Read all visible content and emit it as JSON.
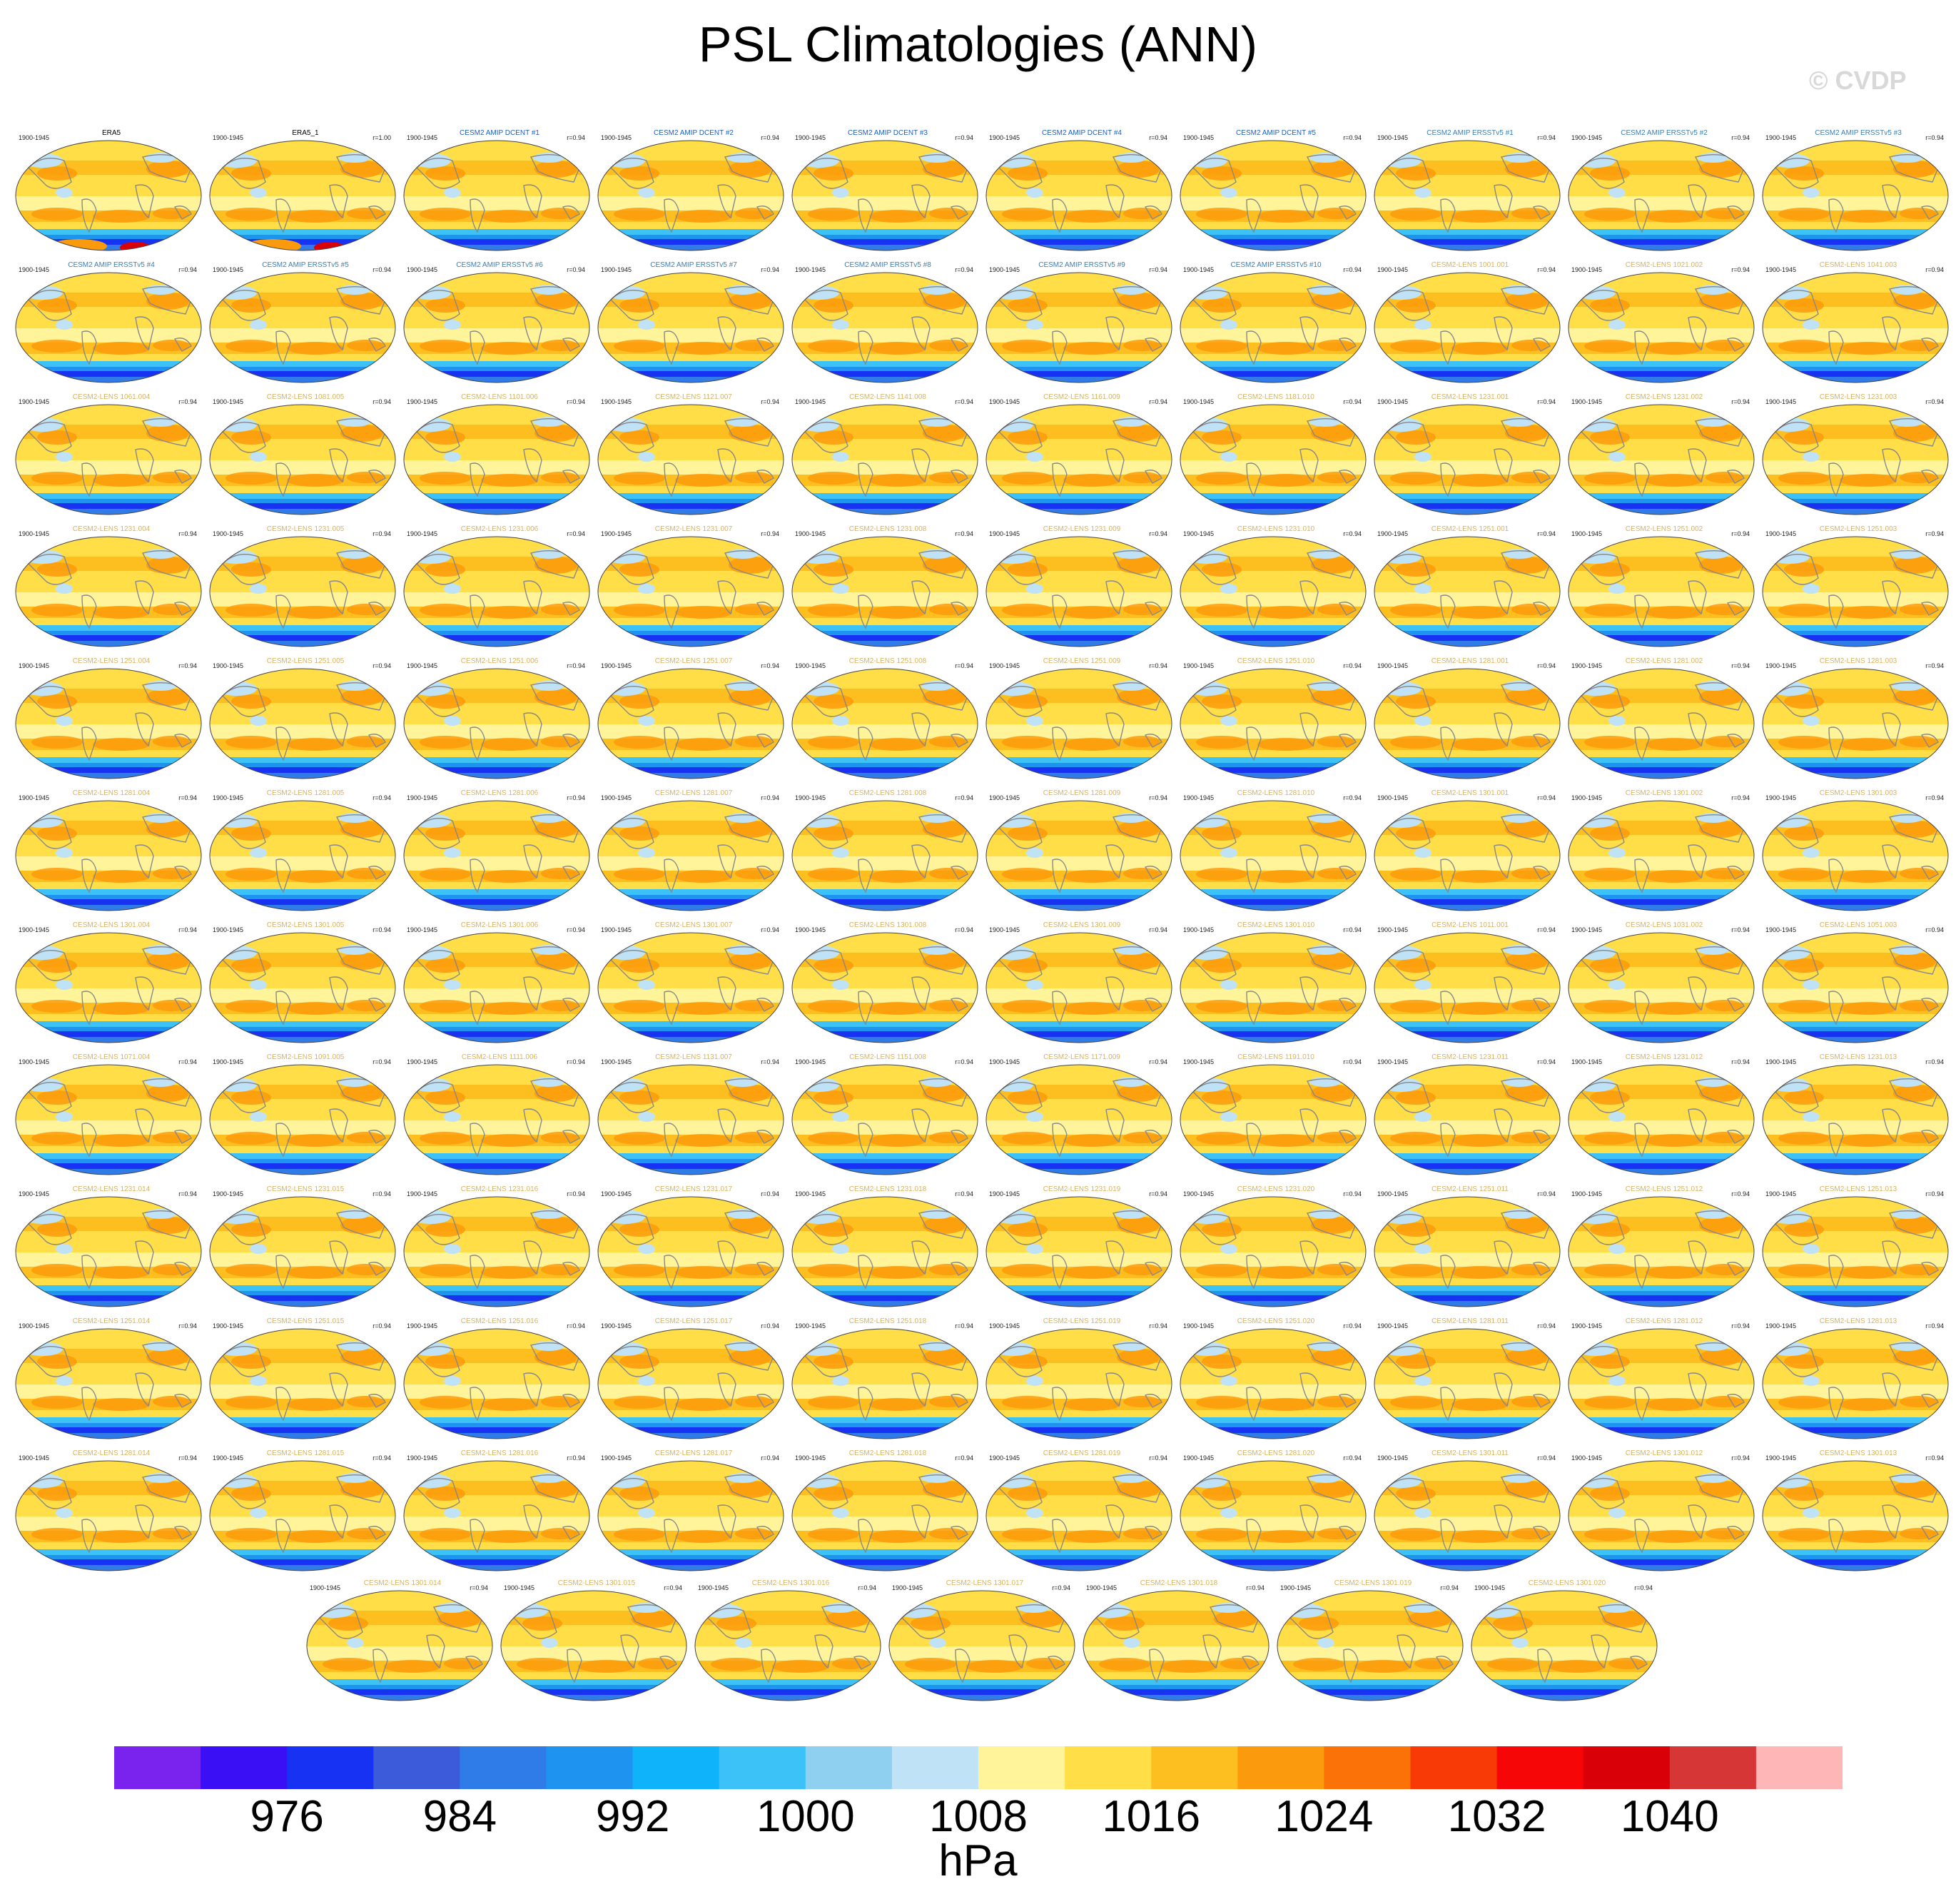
{
  "title": "PSL Climatologies (ANN)",
  "watermark": "© CVDP",
  "colors": {
    "ocean_fill": "#ffd54a",
    "coast": "#888888",
    "title_obs": "#000000",
    "title_amip": "#1f5fbf",
    "title_ersst": "#3a7fb5",
    "title_lens": "#d9b35c"
  },
  "chart_data": {
    "type": "heatmap",
    "projection": "Robinson",
    "variable": "PSL",
    "season": "ANN",
    "colorbar": {
      "units": "hPa",
      "levels": [
        972,
        976,
        980,
        984,
        988,
        992,
        996,
        1000,
        1004,
        1008,
        1012,
        1016,
        1020,
        1024,
        1028,
        1032,
        1036,
        1040
      ],
      "tick_labels": [
        "976",
        "984",
        "992",
        "1000",
        "1008",
        "1016",
        "1024",
        "1032",
        "1040"
      ],
      "colors": [
        "#7a22ee",
        "#3a0ff5",
        "#1732f2",
        "#3b5bdb",
        "#2f7be8",
        "#1f93f0",
        "#0eb3fa",
        "#3cc2f7",
        "#8fcff0",
        "#bfe2f7",
        "#fff49a",
        "#ffde47",
        "#fdbf1f",
        "#fb9a0c",
        "#fb7308",
        "#f83a07",
        "#f70608",
        "#d90008",
        "#d63636",
        "#ffb6b6"
      ]
    },
    "panels": [
      {
        "title": "ERA5",
        "period": "1900-1945",
        "r": "",
        "kind": "obs"
      },
      {
        "title": "ERA5_1",
        "period": "1900-1945",
        "r": "r=1.00",
        "kind": "obs"
      },
      {
        "title": "CESM2 AMIP DCENT #1",
        "period": "1900-1945",
        "r": "r=0.94",
        "kind": "amip"
      },
      {
        "title": "CESM2 AMIP DCENT #2",
        "period": "1900-1945",
        "r": "r=0.94",
        "kind": "amip"
      },
      {
        "title": "CESM2 AMIP DCENT #3",
        "period": "1900-1945",
        "r": "r=0.94",
        "kind": "amip"
      },
      {
        "title": "CESM2 AMIP DCENT #4",
        "period": "1900-1945",
        "r": "r=0.94",
        "kind": "amip"
      },
      {
        "title": "CESM2 AMIP DCENT #5",
        "period": "1900-1945",
        "r": "r=0.94",
        "kind": "amip"
      },
      {
        "title": "CESM2 AMIP ERSSTv5 #1",
        "period": "1900-1945",
        "r": "r=0.94",
        "kind": "ersst"
      },
      {
        "title": "CESM2 AMIP ERSSTv5 #2",
        "period": "1900-1945",
        "r": "r=0.94",
        "kind": "ersst"
      },
      {
        "title": "CESM2 AMIP ERSSTv5 #3",
        "period": "1900-1945",
        "r": "r=0.94",
        "kind": "ersst"
      },
      {
        "title": "CESM2 AMIP ERSSTv5 #4",
        "period": "1900-1945",
        "r": "r=0.94",
        "kind": "ersst"
      },
      {
        "title": "CESM2 AMIP ERSSTv5 #5",
        "period": "1900-1945",
        "r": "r=0.94",
        "kind": "ersst"
      },
      {
        "title": "CESM2 AMIP ERSSTv5 #6",
        "period": "1900-1945",
        "r": "r=0.94",
        "kind": "ersst"
      },
      {
        "title": "CESM2 AMIP ERSSTv5 #7",
        "period": "1900-1945",
        "r": "r=0.94",
        "kind": "ersst"
      },
      {
        "title": "CESM2 AMIP ERSSTv5 #8",
        "period": "1900-1945",
        "r": "r=0.94",
        "kind": "ersst"
      },
      {
        "title": "CESM2 AMIP ERSSTv5 #9",
        "period": "1900-1945",
        "r": "r=0.94",
        "kind": "ersst"
      },
      {
        "title": "CESM2 AMIP ERSSTv5 #10",
        "period": "1900-1945",
        "r": "r=0.94",
        "kind": "ersst"
      },
      {
        "title": "CESM2-LENS 1001.001",
        "period": "1900-1945",
        "r": "r=0.94",
        "kind": "lens"
      },
      {
        "title": "CESM2-LENS 1021.002",
        "period": "1900-1945",
        "r": "r=0.94",
        "kind": "lens"
      },
      {
        "title": "CESM2-LENS 1041.003",
        "period": "1900-1945",
        "r": "r=0.94",
        "kind": "lens"
      },
      {
        "title": "CESM2-LENS 1061.004",
        "period": "1900-1945",
        "r": "r=0.94",
        "kind": "lens"
      },
      {
        "title": "CESM2-LENS 1081.005",
        "period": "1900-1945",
        "r": "r=0.94",
        "kind": "lens"
      },
      {
        "title": "CESM2-LENS 1101.006",
        "period": "1900-1945",
        "r": "r=0.94",
        "kind": "lens"
      },
      {
        "title": "CESM2-LENS 1121.007",
        "period": "1900-1945",
        "r": "r=0.94",
        "kind": "lens"
      },
      {
        "title": "CESM2-LENS 1141.008",
        "period": "1900-1945",
        "r": "r=0.94",
        "kind": "lens"
      },
      {
        "title": "CESM2-LENS 1161.009",
        "period": "1900-1945",
        "r": "r=0.94",
        "kind": "lens"
      },
      {
        "title": "CESM2-LENS 1181.010",
        "period": "1900-1945",
        "r": "r=0.94",
        "kind": "lens"
      },
      {
        "title": "CESM2-LENS 1231.001",
        "period": "1900-1945",
        "r": "r=0.94",
        "kind": "lens"
      },
      {
        "title": "CESM2-LENS 1231.002",
        "period": "1900-1945",
        "r": "r=0.94",
        "kind": "lens"
      },
      {
        "title": "CESM2-LENS 1231.003",
        "period": "1900-1945",
        "r": "r=0.94",
        "kind": "lens"
      },
      {
        "title": "CESM2-LENS 1231.004",
        "period": "1900-1945",
        "r": "r=0.94",
        "kind": "lens"
      },
      {
        "title": "CESM2-LENS 1231.005",
        "period": "1900-1945",
        "r": "r=0.94",
        "kind": "lens"
      },
      {
        "title": "CESM2-LENS 1231.006",
        "period": "1900-1945",
        "r": "r=0.94",
        "kind": "lens"
      },
      {
        "title": "CESM2-LENS 1231.007",
        "period": "1900-1945",
        "r": "r=0.94",
        "kind": "lens"
      },
      {
        "title": "CESM2-LENS 1231.008",
        "period": "1900-1945",
        "r": "r=0.94",
        "kind": "lens"
      },
      {
        "title": "CESM2-LENS 1231.009",
        "period": "1900-1945",
        "r": "r=0.94",
        "kind": "lens"
      },
      {
        "title": "CESM2-LENS 1231.010",
        "period": "1900-1945",
        "r": "r=0.94",
        "kind": "lens"
      },
      {
        "title": "CESM2-LENS 1251.001",
        "period": "1900-1945",
        "r": "r=0.94",
        "kind": "lens"
      },
      {
        "title": "CESM2-LENS 1251.002",
        "period": "1900-1945",
        "r": "r=0.94",
        "kind": "lens"
      },
      {
        "title": "CESM2-LENS 1251.003",
        "period": "1900-1945",
        "r": "r=0.94",
        "kind": "lens"
      },
      {
        "title": "CESM2-LENS 1251.004",
        "period": "1900-1945",
        "r": "r=0.94",
        "kind": "lens"
      },
      {
        "title": "CESM2-LENS 1251.005",
        "period": "1900-1945",
        "r": "r=0.94",
        "kind": "lens"
      },
      {
        "title": "CESM2-LENS 1251.006",
        "period": "1900-1945",
        "r": "r=0.94",
        "kind": "lens"
      },
      {
        "title": "CESM2-LENS 1251.007",
        "period": "1900-1945",
        "r": "r=0.94",
        "kind": "lens"
      },
      {
        "title": "CESM2-LENS 1251.008",
        "period": "1900-1945",
        "r": "r=0.94",
        "kind": "lens"
      },
      {
        "title": "CESM2-LENS 1251.009",
        "period": "1900-1945",
        "r": "r=0.94",
        "kind": "lens"
      },
      {
        "title": "CESM2-LENS 1251.010",
        "period": "1900-1945",
        "r": "r=0.94",
        "kind": "lens"
      },
      {
        "title": "CESM2-LENS 1281.001",
        "period": "1900-1945",
        "r": "r=0.94",
        "kind": "lens"
      },
      {
        "title": "CESM2-LENS 1281.002",
        "period": "1900-1945",
        "r": "r=0.94",
        "kind": "lens"
      },
      {
        "title": "CESM2-LENS 1281.003",
        "period": "1900-1945",
        "r": "r=0.94",
        "kind": "lens"
      },
      {
        "title": "CESM2-LENS 1281.004",
        "period": "1900-1945",
        "r": "r=0.94",
        "kind": "lens"
      },
      {
        "title": "CESM2-LENS 1281.005",
        "period": "1900-1945",
        "r": "r=0.94",
        "kind": "lens"
      },
      {
        "title": "CESM2-LENS 1281.006",
        "period": "1900-1945",
        "r": "r=0.94",
        "kind": "lens"
      },
      {
        "title": "CESM2-LENS 1281.007",
        "period": "1900-1945",
        "r": "r=0.94",
        "kind": "lens"
      },
      {
        "title": "CESM2-LENS 1281.008",
        "period": "1900-1945",
        "r": "r=0.94",
        "kind": "lens"
      },
      {
        "title": "CESM2-LENS 1281.009",
        "period": "1900-1945",
        "r": "r=0.94",
        "kind": "lens"
      },
      {
        "title": "CESM2-LENS 1281.010",
        "period": "1900-1945",
        "r": "r=0.94",
        "kind": "lens"
      },
      {
        "title": "CESM2-LENS 1301.001",
        "period": "1900-1945",
        "r": "r=0.94",
        "kind": "lens"
      },
      {
        "title": "CESM2-LENS 1301.002",
        "period": "1900-1945",
        "r": "r=0.94",
        "kind": "lens"
      },
      {
        "title": "CESM2-LENS 1301.003",
        "period": "1900-1945",
        "r": "r=0.94",
        "kind": "lens"
      },
      {
        "title": "CESM2-LENS 1301.004",
        "period": "1900-1945",
        "r": "r=0.94",
        "kind": "lens"
      },
      {
        "title": "CESM2-LENS 1301.005",
        "period": "1900-1945",
        "r": "r=0.94",
        "kind": "lens"
      },
      {
        "title": "CESM2-LENS 1301.006",
        "period": "1900-1945",
        "r": "r=0.94",
        "kind": "lens"
      },
      {
        "title": "CESM2-LENS 1301.007",
        "period": "1900-1945",
        "r": "r=0.94",
        "kind": "lens"
      },
      {
        "title": "CESM2-LENS 1301.008",
        "period": "1900-1945",
        "r": "r=0.94",
        "kind": "lens"
      },
      {
        "title": "CESM2-LENS 1301.009",
        "period": "1900-1945",
        "r": "r=0.94",
        "kind": "lens"
      },
      {
        "title": "CESM2-LENS 1301.010",
        "period": "1900-1945",
        "r": "r=0.94",
        "kind": "lens"
      },
      {
        "title": "CESM2-LENS 1011.001",
        "period": "1900-1945",
        "r": "r=0.94",
        "kind": "lens"
      },
      {
        "title": "CESM2-LENS 1031.002",
        "period": "1900-1945",
        "r": "r=0.94",
        "kind": "lens"
      },
      {
        "title": "CESM2-LENS 1051.003",
        "period": "1900-1945",
        "r": "r=0.94",
        "kind": "lens"
      },
      {
        "title": "CESM2-LENS 1071.004",
        "period": "1900-1945",
        "r": "r=0.94",
        "kind": "lens"
      },
      {
        "title": "CESM2-LENS 1091.005",
        "period": "1900-1945",
        "r": "r=0.94",
        "kind": "lens"
      },
      {
        "title": "CESM2-LENS 1111.006",
        "period": "1900-1945",
        "r": "r=0.94",
        "kind": "lens"
      },
      {
        "title": "CESM2-LENS 1131.007",
        "period": "1900-1945",
        "r": "r=0.94",
        "kind": "lens"
      },
      {
        "title": "CESM2-LENS 1151.008",
        "period": "1900-1945",
        "r": "r=0.94",
        "kind": "lens"
      },
      {
        "title": "CESM2-LENS 1171.009",
        "period": "1900-1945",
        "r": "r=0.94",
        "kind": "lens"
      },
      {
        "title": "CESM2-LENS 1191.010",
        "period": "1900-1945",
        "r": "r=0.94",
        "kind": "lens"
      },
      {
        "title": "CESM2-LENS 1231.011",
        "period": "1900-1945",
        "r": "r=0.94",
        "kind": "lens"
      },
      {
        "title": "CESM2-LENS 1231.012",
        "period": "1900-1945",
        "r": "r=0.94",
        "kind": "lens"
      },
      {
        "title": "CESM2-LENS 1231.013",
        "period": "1900-1945",
        "r": "r=0.94",
        "kind": "lens"
      },
      {
        "title": "CESM2-LENS 1231.014",
        "period": "1900-1945",
        "r": "r=0.94",
        "kind": "lens"
      },
      {
        "title": "CESM2-LENS 1231.015",
        "period": "1900-1945",
        "r": "r=0.94",
        "kind": "lens"
      },
      {
        "title": "CESM2-LENS 1231.016",
        "period": "1900-1945",
        "r": "r=0.94",
        "kind": "lens"
      },
      {
        "title": "CESM2-LENS 1231.017",
        "period": "1900-1945",
        "r": "r=0.94",
        "kind": "lens"
      },
      {
        "title": "CESM2-LENS 1231.018",
        "period": "1900-1945",
        "r": "r=0.94",
        "kind": "lens"
      },
      {
        "title": "CESM2-LENS 1231.019",
        "period": "1900-1945",
        "r": "r=0.94",
        "kind": "lens"
      },
      {
        "title": "CESM2-LENS 1231.020",
        "period": "1900-1945",
        "r": "r=0.94",
        "kind": "lens"
      },
      {
        "title": "CESM2-LENS 1251.011",
        "period": "1900-1945",
        "r": "r=0.94",
        "kind": "lens"
      },
      {
        "title": "CESM2-LENS 1251.012",
        "period": "1900-1945",
        "r": "r=0.94",
        "kind": "lens"
      },
      {
        "title": "CESM2-LENS 1251.013",
        "period": "1900-1945",
        "r": "r=0.94",
        "kind": "lens"
      },
      {
        "title": "CESM2-LENS 1251.014",
        "period": "1900-1945",
        "r": "r=0.94",
        "kind": "lens"
      },
      {
        "title": "CESM2-LENS 1251.015",
        "period": "1900-1945",
        "r": "r=0.94",
        "kind": "lens"
      },
      {
        "title": "CESM2-LENS 1251.016",
        "period": "1900-1945",
        "r": "r=0.94",
        "kind": "lens"
      },
      {
        "title": "CESM2-LENS 1251.017",
        "period": "1900-1945",
        "r": "r=0.94",
        "kind": "lens"
      },
      {
        "title": "CESM2-LENS 1251.018",
        "period": "1900-1945",
        "r": "r=0.94",
        "kind": "lens"
      },
      {
        "title": "CESM2-LENS 1251.019",
        "period": "1900-1945",
        "r": "r=0.94",
        "kind": "lens"
      },
      {
        "title": "CESM2-LENS 1251.020",
        "period": "1900-1945",
        "r": "r=0.94",
        "kind": "lens"
      },
      {
        "title": "CESM2-LENS 1281.011",
        "period": "1900-1945",
        "r": "r=0.94",
        "kind": "lens"
      },
      {
        "title": "CESM2-LENS 1281.012",
        "period": "1900-1945",
        "r": "r=0.94",
        "kind": "lens"
      },
      {
        "title": "CESM2-LENS 1281.013",
        "period": "1900-1945",
        "r": "r=0.94",
        "kind": "lens"
      },
      {
        "title": "CESM2-LENS 1281.014",
        "period": "1900-1945",
        "r": "r=0.94",
        "kind": "lens"
      },
      {
        "title": "CESM2-LENS 1281.015",
        "period": "1900-1945",
        "r": "r=0.94",
        "kind": "lens"
      },
      {
        "title": "CESM2-LENS 1281.016",
        "period": "1900-1945",
        "r": "r=0.94",
        "kind": "lens"
      },
      {
        "title": "CESM2-LENS 1281.017",
        "period": "1900-1945",
        "r": "r=0.94",
        "kind": "lens"
      },
      {
        "title": "CESM2-LENS 1281.018",
        "period": "1900-1945",
        "r": "r=0.94",
        "kind": "lens"
      },
      {
        "title": "CESM2-LENS 1281.019",
        "period": "1900-1945",
        "r": "r=0.94",
        "kind": "lens"
      },
      {
        "title": "CESM2-LENS 1281.020",
        "period": "1900-1945",
        "r": "r=0.94",
        "kind": "lens"
      },
      {
        "title": "CESM2-LENS 1301.011",
        "period": "1900-1945",
        "r": "r=0.94",
        "kind": "lens"
      },
      {
        "title": "CESM2-LENS 1301.012",
        "period": "1900-1945",
        "r": "r=0.94",
        "kind": "lens"
      },
      {
        "title": "CESM2-LENS 1301.013",
        "period": "1900-1945",
        "r": "r=0.94",
        "kind": "lens"
      },
      {
        "title": "CESM2-LENS 1301.014",
        "period": "1900-1945",
        "r": "r=0.94",
        "kind": "lens"
      },
      {
        "title": "CESM2-LENS 1301.015",
        "period": "1900-1945",
        "r": "r=0.94",
        "kind": "lens"
      },
      {
        "title": "CESM2-LENS 1301.016",
        "period": "1900-1945",
        "r": "r=0.94",
        "kind": "lens"
      },
      {
        "title": "CESM2-LENS 1301.017",
        "period": "1900-1945",
        "r": "r=0.94",
        "kind": "lens"
      },
      {
        "title": "CESM2-LENS 1301.018",
        "period": "1900-1945",
        "r": "r=0.94",
        "kind": "lens"
      },
      {
        "title": "CESM2-LENS 1301.019",
        "period": "1900-1945",
        "r": "r=0.94",
        "kind": "lens"
      },
      {
        "title": "CESM2-LENS 1301.020",
        "period": "1900-1945",
        "r": "r=0.94",
        "kind": "lens"
      }
    ]
  }
}
